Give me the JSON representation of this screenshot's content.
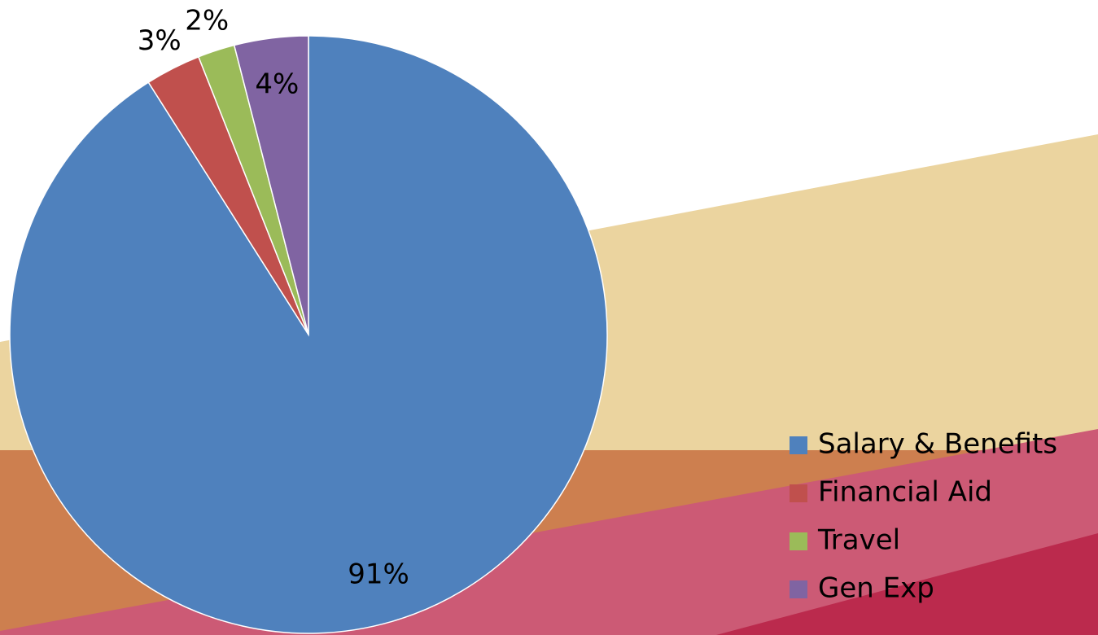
{
  "chart_data": {
    "type": "pie",
    "categories": [
      "Salary & Benefits",
      "Financial Aid",
      "Travel",
      "Gen Exp"
    ],
    "values": [
      91,
      3,
      2,
      4
    ],
    "value_labels": [
      "91%",
      "3%",
      "2%",
      "4%"
    ],
    "colors": [
      "#4f81bd",
      "#c0504d",
      "#9bbb59",
      "#8064a2"
    ],
    "legend": "right"
  }
}
